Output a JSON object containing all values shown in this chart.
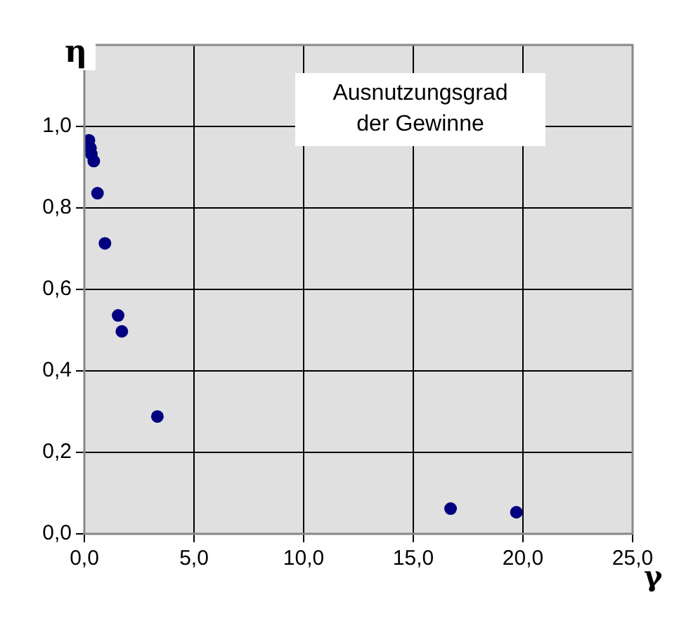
{
  "chart_data": {
    "type": "scatter",
    "xlabel": "γ",
    "ylabel": "η",
    "annotations": [
      "Ausnutzungsgrad der Gewinne"
    ],
    "series": [
      {
        "color": "#000080",
        "x": [
          0.21,
          0.28,
          0.32,
          0.43,
          0.6,
          0.94,
          1.54,
          1.71,
          3.33,
          16.7,
          19.7
        ],
        "values": [
          0.966,
          0.947,
          0.932,
          0.915,
          0.836,
          0.713,
          0.536,
          0.497,
          0.288,
          0.062,
          0.053
        ]
      }
    ],
    "xlim": [
      0,
      25
    ],
    "xticks": [
      {
        "value": 0,
        "label": "0,0"
      },
      {
        "value": 5,
        "label": "5,0"
      },
      {
        "value": 10,
        "label": "10,0"
      },
      {
        "value": 15,
        "label": "15,0"
      },
      {
        "value": 20,
        "label": "20,0"
      },
      {
        "value": 25,
        "label": "25,0"
      }
    ],
    "ylim": [
      0,
      1.2
    ],
    "yticks": [
      {
        "value": 0,
        "label": "0,0"
      },
      {
        "value": 0.2,
        "label": "0,2"
      },
      {
        "value": 0.4,
        "label": "0,4"
      },
      {
        "value": 0.6,
        "label": "0,6"
      },
      {
        "value": 0.8,
        "label": "0,8"
      },
      {
        "value": 1.0,
        "label": "1,0"
      },
      {
        "value": 1.2,
        "label": null
      }
    ],
    "grid": true,
    "marker": "circle",
    "legend": false
  }
}
